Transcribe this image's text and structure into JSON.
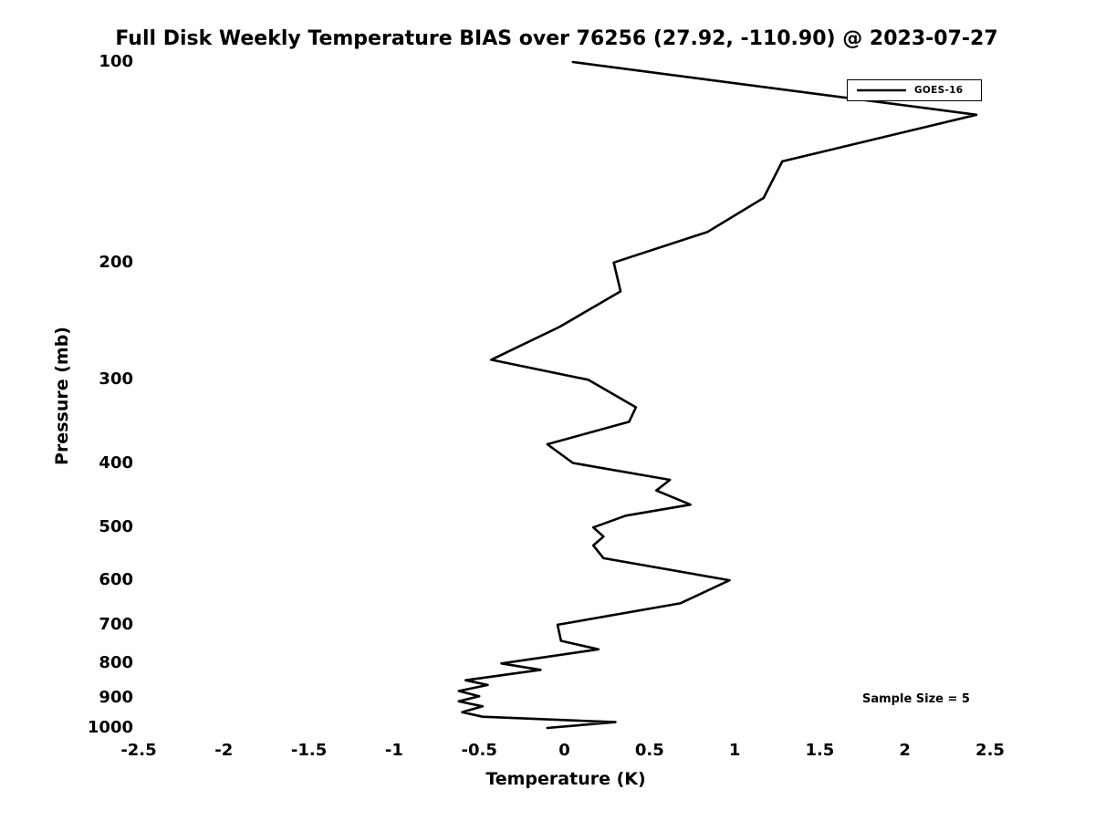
{
  "chart_data": {
    "type": "line",
    "title": "Full Disk Weekly Temperature BIAS over 76256 (27.92, -110.90) @ 2023-07-27",
    "xlabel": "Temperature (K)",
    "ylabel": "Pressure (mb)",
    "xlim": [
      -2.5,
      2.5
    ],
    "ylim": [
      100,
      1000
    ],
    "y_scale": "log",
    "y_inverted": true,
    "grid": false,
    "x_tick_labels": [
      "-2.5",
      "-2",
      "-1.5",
      "-1",
      "-0.5",
      "0",
      "0.5",
      "1",
      "1.5",
      "2",
      "2.5"
    ],
    "y_tick_labels": [
      "100",
      "200",
      "300",
      "400",
      "500",
      "600",
      "700",
      "800",
      "900",
      "1000"
    ],
    "legend": {
      "position": "top-right",
      "entries": [
        {
          "label": "GOES-16",
          "color": "#000000"
        }
      ]
    },
    "annotation": "Sample Size = 5",
    "line_color": "#000000",
    "series": [
      {
        "name": "GOES-16",
        "color": "#000000",
        "points_format": "[pressure_mb, temperature_bias_K]",
        "points": [
          [
            100,
            0.05
          ],
          [
            120,
            2.42
          ],
          [
            141,
            1.28
          ],
          [
            160,
            1.17
          ],
          [
            180,
            0.84
          ],
          [
            200,
            0.29
          ],
          [
            221,
            0.33
          ],
          [
            250,
            -0.03
          ],
          [
            280,
            -0.43
          ],
          [
            300,
            0.14
          ],
          [
            330,
            0.42
          ],
          [
            347,
            0.38
          ],
          [
            375,
            -0.1
          ],
          [
            400,
            0.05
          ],
          [
            424,
            0.62
          ],
          [
            440,
            0.54
          ],
          [
            462,
            0.74
          ],
          [
            480,
            0.36
          ],
          [
            500,
            0.17
          ],
          [
            516,
            0.23
          ],
          [
            532,
            0.17
          ],
          [
            556,
            0.23
          ],
          [
            600,
            0.97
          ],
          [
            650,
            0.68
          ],
          [
            700,
            -0.04
          ],
          [
            740,
            -0.02
          ],
          [
            762,
            0.2
          ],
          [
            800,
            -0.37
          ],
          [
            818,
            -0.14
          ],
          [
            848,
            -0.58
          ],
          [
            862,
            -0.45
          ],
          [
            880,
            -0.62
          ],
          [
            896,
            -0.5
          ],
          [
            912,
            -0.62
          ],
          [
            928,
            -0.48
          ],
          [
            947,
            -0.6
          ],
          [
            962,
            -0.48
          ],
          [
            980,
            0.3
          ],
          [
            1000,
            -0.1
          ]
        ]
      }
    ]
  }
}
